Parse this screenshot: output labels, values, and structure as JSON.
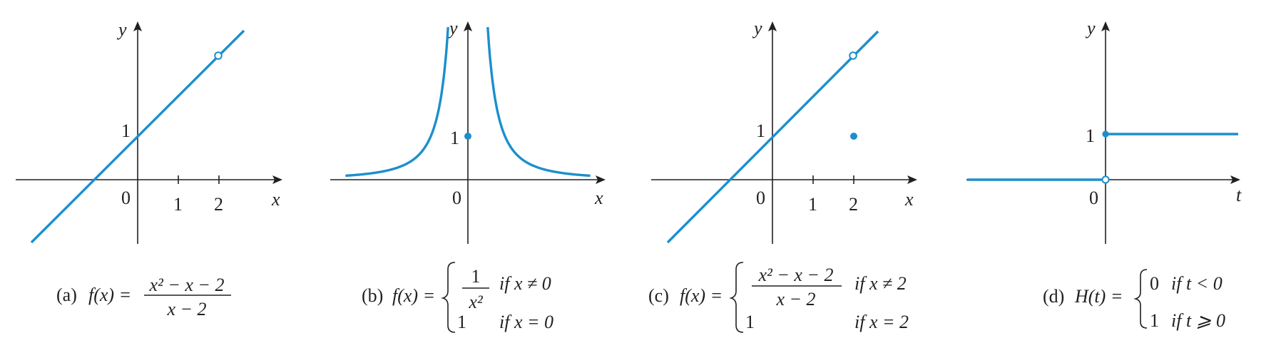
{
  "chart_data": [
    {
      "panel": "a",
      "type": "line",
      "xlabel": "x",
      "ylabel": "y",
      "origin_label": "0",
      "x_ticks": [
        "1",
        "2"
      ],
      "y_ticks": [
        "1"
      ],
      "line": {
        "slope": 1,
        "intercept": 1,
        "x_range": [
          -2.6,
          2.6
        ]
      },
      "open_points": [
        {
          "x": 2,
          "y": 3
        }
      ],
      "filled_points": [],
      "caption": {
        "tag": "(a)",
        "lhs": "f(x) =",
        "numerator": "x² − x − 2",
        "denominator": "x − 2"
      }
    },
    {
      "panel": "b",
      "type": "line",
      "xlabel": "x",
      "ylabel": "y",
      "origin_label": "0",
      "x_ticks": [],
      "y_ticks": [
        "1"
      ],
      "curve": {
        "function": "1/x^2",
        "x_range": [
          -3.3,
          3.3
        ]
      },
      "open_points": [],
      "filled_points": [
        {
          "x": 0,
          "y": 1
        }
      ],
      "caption": {
        "tag": "(b)",
        "lhs": "f(x) =",
        "case1_num": "1",
        "case1_den": "x²",
        "case1_cond": "if x ≠ 0",
        "case2_val": "1",
        "case2_cond": "if x = 0"
      }
    },
    {
      "panel": "c",
      "type": "line",
      "xlabel": "x",
      "ylabel": "y",
      "origin_label": "0",
      "x_ticks": [
        "1",
        "2"
      ],
      "y_ticks": [
        "1"
      ],
      "line": {
        "slope": 1,
        "intercept": 1,
        "x_range": [
          -2.5,
          2.6
        ]
      },
      "open_points": [
        {
          "x": 2,
          "y": 3
        }
      ],
      "filled_points": [
        {
          "x": 2,
          "y": 1
        }
      ],
      "caption": {
        "tag": "(c)",
        "lhs": "f(x) =",
        "case1_num": "x² − x − 2",
        "case1_den": "x − 2",
        "case1_cond": "if x ≠ 2",
        "case2_val": "1",
        "case2_cond": "if x = 2"
      }
    },
    {
      "panel": "d",
      "type": "line",
      "xlabel": "t",
      "ylabel": "y",
      "origin_label": "0",
      "x_ticks": [],
      "y_ticks": [
        "1"
      ],
      "steps": [
        {
          "x_range": [
            -3.4,
            0
          ],
          "y": 0
        },
        {
          "x_range": [
            0,
            3.3
          ],
          "y": 1
        }
      ],
      "open_points": [
        {
          "x": 0,
          "y": 0
        }
      ],
      "filled_points": [
        {
          "x": 0,
          "y": 1
        }
      ],
      "caption": {
        "tag": "(d)",
        "lhs": "H(t) =",
        "case1_val": "0",
        "case1_cond": "if t < 0",
        "case2_val": "1",
        "case2_cond": "if t ⩾ 0"
      }
    }
  ],
  "colors": {
    "curve": "#1b8fcc",
    "axis": "#231f20"
  }
}
